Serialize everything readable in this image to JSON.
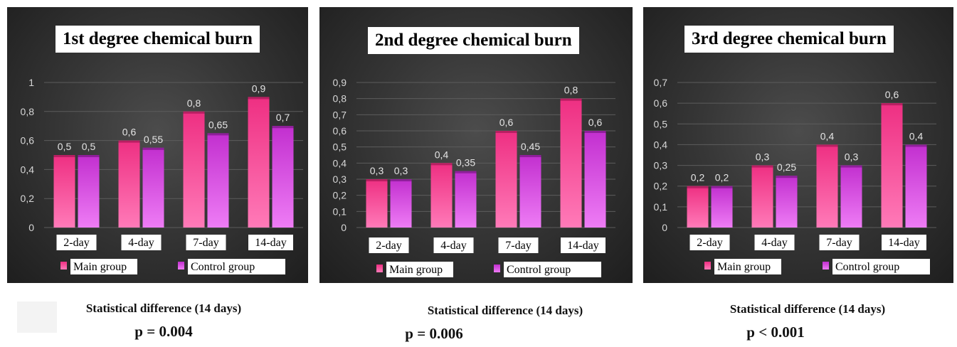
{
  "colors": {
    "main": "#ee2f82",
    "main_light": "#ff7ab8",
    "control": "#c22fcf",
    "control_light": "#ee7cf5",
    "text": "#dddddd"
  },
  "chart_data": [
    {
      "type": "bar",
      "title": "1st degree chemical burn",
      "categories": [
        "2-day",
        "4-day",
        "7-day",
        "14-day"
      ],
      "series": [
        {
          "name": "Main group",
          "values": [
            0.5,
            0.6,
            0.8,
            0.9
          ],
          "labels": [
            "0,5",
            "0,6",
            "0,8",
            "0,9"
          ]
        },
        {
          "name": "Control group",
          "values": [
            0.5,
            0.55,
            0.65,
            0.7
          ],
          "labels": [
            "0,5",
            "0,55",
            "0,65",
            "0,7"
          ]
        }
      ],
      "yticks": [
        0,
        0.2,
        0.4,
        0.6,
        0.8,
        1
      ],
      "ytick_labels": [
        "0",
        "0,2",
        "0,4",
        "0,6",
        "0,8",
        "1"
      ],
      "ylim": [
        0,
        1
      ],
      "legend": "bottom",
      "grid": true,
      "stat_title": "Statistical difference (14 days)",
      "p_value": "p = 0.004"
    },
    {
      "type": "bar",
      "title": "2nd degree chemical burn",
      "categories": [
        "2-day",
        "4-day",
        "7-day",
        "14-day"
      ],
      "series": [
        {
          "name": "Main group",
          "values": [
            0.3,
            0.4,
            0.6,
            0.8
          ],
          "labels": [
            "0,3",
            "0,4",
            "0,6",
            "0,8"
          ]
        },
        {
          "name": "Control group",
          "values": [
            0.3,
            0.35,
            0.45,
            0.6
          ],
          "labels": [
            "0,3",
            "0,35",
            "0,45",
            "0,6"
          ]
        }
      ],
      "yticks": [
        0,
        0.1,
        0.2,
        0.3,
        0.4,
        0.5,
        0.6,
        0.7,
        0.8,
        0.9
      ],
      "ytick_labels": [
        "0",
        "0,1",
        "0,2",
        "0,3",
        "0,4",
        "0,5",
        "0,6",
        "0,7",
        "0,8",
        "0,9"
      ],
      "ylim": [
        0,
        0.9
      ],
      "legend": "bottom",
      "grid": true,
      "stat_title": "Statistical difference (14 days)",
      "p_value": "p = 0.006"
    },
    {
      "type": "bar",
      "title": "3rd degree chemical burn",
      "categories": [
        "2-day",
        "4-day",
        "7-day",
        "14-day"
      ],
      "series": [
        {
          "name": "Main group",
          "values": [
            0.2,
            0.3,
            0.4,
            0.6
          ],
          "labels": [
            "0,2",
            "0,3",
            "0,4",
            "0,6"
          ]
        },
        {
          "name": "Control group",
          "values": [
            0.2,
            0.25,
            0.3,
            0.4
          ],
          "labels": [
            "0,2",
            "0,25",
            "0,3",
            "0,4"
          ]
        }
      ],
      "yticks": [
        0,
        0.1,
        0.2,
        0.3,
        0.4,
        0.5,
        0.6,
        0.7
      ],
      "ytick_labels": [
        "0",
        "0,1",
        "0,2",
        "0,3",
        "0,4",
        "0,5",
        "0,6",
        "0,7"
      ],
      "ylim": [
        0,
        0.7
      ],
      "legend": "bottom",
      "grid": true,
      "stat_title": "Statistical difference (14 days)",
      "p_value": "p < 0.001"
    }
  ]
}
